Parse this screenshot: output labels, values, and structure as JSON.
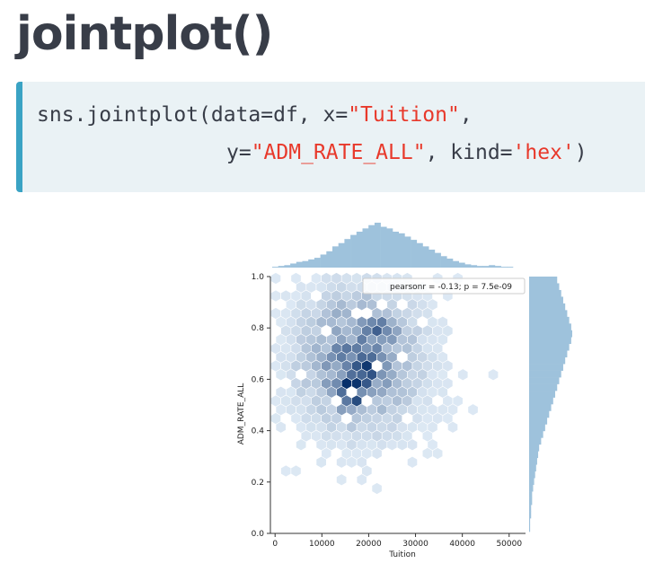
{
  "slide": {
    "title": "jointplot()"
  },
  "code": {
    "line1": [
      {
        "text": "sns.jointplot(data=df, x=",
        "kind": "plain"
      },
      {
        "text": "\"Tuition\"",
        "kind": "string"
      },
      {
        "text": ",",
        "kind": "plain"
      }
    ],
    "line2": [
      {
        "text": "y=",
        "kind": "plain"
      },
      {
        "text": "\"ADM_RATE_ALL\"",
        "kind": "string"
      },
      {
        "text": ", kind=",
        "kind": "plain"
      },
      {
        "text": "'hex'",
        "kind": "string"
      },
      {
        "text": ")",
        "kind": "plain"
      }
    ]
  },
  "colors": {
    "string": "#e8392b",
    "code_bg": "#eaf2f5",
    "code_accent": "#3aa3c4",
    "marginal": "#9ec2dc",
    "hex_dark": "#08306b",
    "hex_light": "#e3eef8"
  },
  "chart_data": {
    "type": "hexbin",
    "xlabel": "Tuition",
    "ylabel": "ADM_RATE_ALL",
    "xlim": [
      -1000,
      53500
    ],
    "ylim": [
      0.0,
      1.0
    ],
    "xticks": [
      0,
      10000,
      20000,
      30000,
      40000,
      50000
    ],
    "xtick_labels": [
      "0",
      "10000",
      "20000",
      "30000",
      "40000",
      "50000"
    ],
    "yticks": [
      0.0,
      0.2,
      0.4,
      0.6,
      0.8,
      1.0
    ],
    "ytick_labels": [
      "0.0",
      "0.2",
      "0.4",
      "0.6",
      "0.8",
      "1.0"
    ],
    "annotation": "pearsonr = -0.13; p = 7.5e-09",
    "legend_position": "top-right",
    "x_marginal_counts": [
      1,
      2,
      3,
      5,
      7,
      8,
      10,
      12,
      16,
      20,
      26,
      30,
      35,
      40,
      44,
      48,
      52,
      55,
      50,
      48,
      44,
      42,
      38,
      34,
      30,
      26,
      22,
      18,
      14,
      11,
      8,
      6,
      4,
      3,
      2,
      2,
      3,
      2,
      1,
      1
    ],
    "y_marginal_counts": [
      1,
      1,
      2,
      2,
      3,
      3,
      4,
      5,
      6,
      7,
      8,
      9,
      10,
      12,
      14,
      16,
      18,
      20,
      22,
      24,
      26,
      28,
      30,
      32,
      34,
      36,
      38,
      40,
      42,
      43,
      42,
      40,
      38,
      36,
      34,
      32,
      30,
      28
    ],
    "density": {
      "x_center": 18000,
      "y_center": 0.68,
      "x_sigma": 8000,
      "y_sigma": 0.17,
      "peak_points": [
        {
          "x": 16500,
          "y": 0.595,
          "weight": 1.0
        },
        {
          "x": 21000,
          "y": 0.79,
          "weight": 0.8
        },
        {
          "x": 17000,
          "y": 0.52,
          "weight": 0.7
        },
        {
          "x": 20000,
          "y": 0.64,
          "weight": 0.6
        }
      ]
    }
  }
}
